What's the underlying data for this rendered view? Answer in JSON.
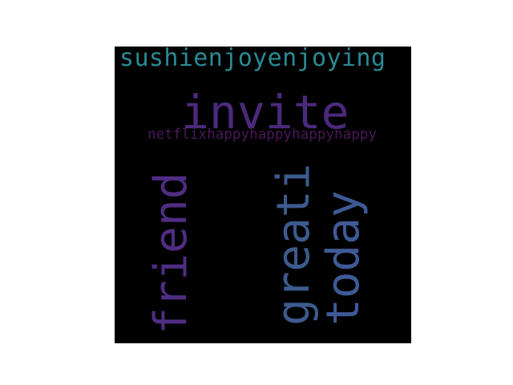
{
  "wordcloud": {
    "background": "#000000",
    "words": [
      {
        "text": "sushienjoyenjoying",
        "color": "#2a8a95"
      },
      {
        "text": "invite",
        "color": "#4b2a7c"
      },
      {
        "text": "netflixhappyhappyhappyhappy",
        "color": "#4a1758"
      },
      {
        "text": "friend",
        "color": "#4f2d83"
      },
      {
        "text": "greati",
        "color": "#3c5b8e"
      },
      {
        "text": "today",
        "color": "#3e5a96"
      }
    ]
  }
}
